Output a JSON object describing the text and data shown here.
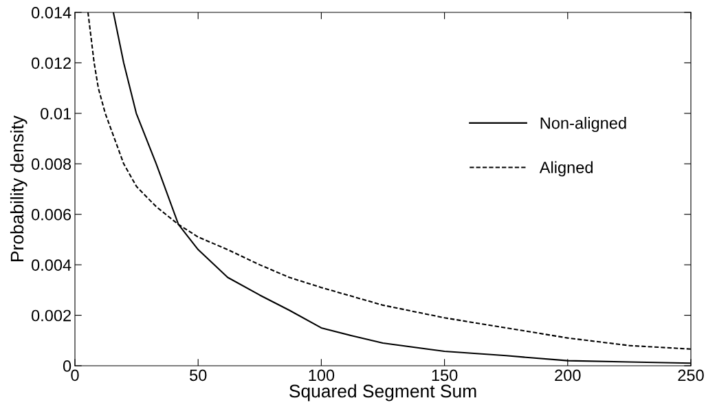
{
  "chart_data": {
    "type": "line",
    "xlabel": "Squared Segment Sum",
    "ylabel": "Probability density",
    "xlim": [
      0,
      250
    ],
    "ylim": [
      0,
      0.014
    ],
    "xticks": [
      0,
      50,
      100,
      150,
      200,
      250
    ],
    "yticks": [
      0,
      0.002,
      0.004,
      0.006,
      0.008,
      0.01,
      0.012,
      0.014
    ],
    "grid": false,
    "legend": "right",
    "marker": "none",
    "series": [
      {
        "name": "Non-aligned",
        "color": "#000000",
        "line_style": "solid",
        "x": [
          15.6,
          19.8,
          24.9,
          33,
          42,
          50,
          62,
          75,
          87,
          100,
          112,
          125,
          150,
          175,
          200,
          225,
          250
        ],
        "values": [
          0.014,
          0.012,
          0.01,
          0.008,
          0.0056,
          0.0046,
          0.0035,
          0.0028,
          0.0022,
          0.0015,
          0.0012,
          0.0009,
          0.00057,
          0.0004,
          0.0002,
          0.00015,
          0.0001
        ]
      },
      {
        "name": "Aligned",
        "color": "#000000",
        "line_style": "dashed",
        "x": [
          5.3,
          7.8,
          9.5,
          12.3,
          19.8,
          25,
          33,
          42,
          50,
          62,
          75,
          87,
          100,
          125,
          150,
          175,
          200,
          225,
          250
        ],
        "values": [
          0.014,
          0.012,
          0.011,
          0.01,
          0.008,
          0.0071,
          0.0063,
          0.0056,
          0.0051,
          0.0046,
          0.004,
          0.0035,
          0.0031,
          0.0024,
          0.0019,
          0.0015,
          0.0011,
          0.0008,
          0.00066
        ]
      }
    ]
  }
}
